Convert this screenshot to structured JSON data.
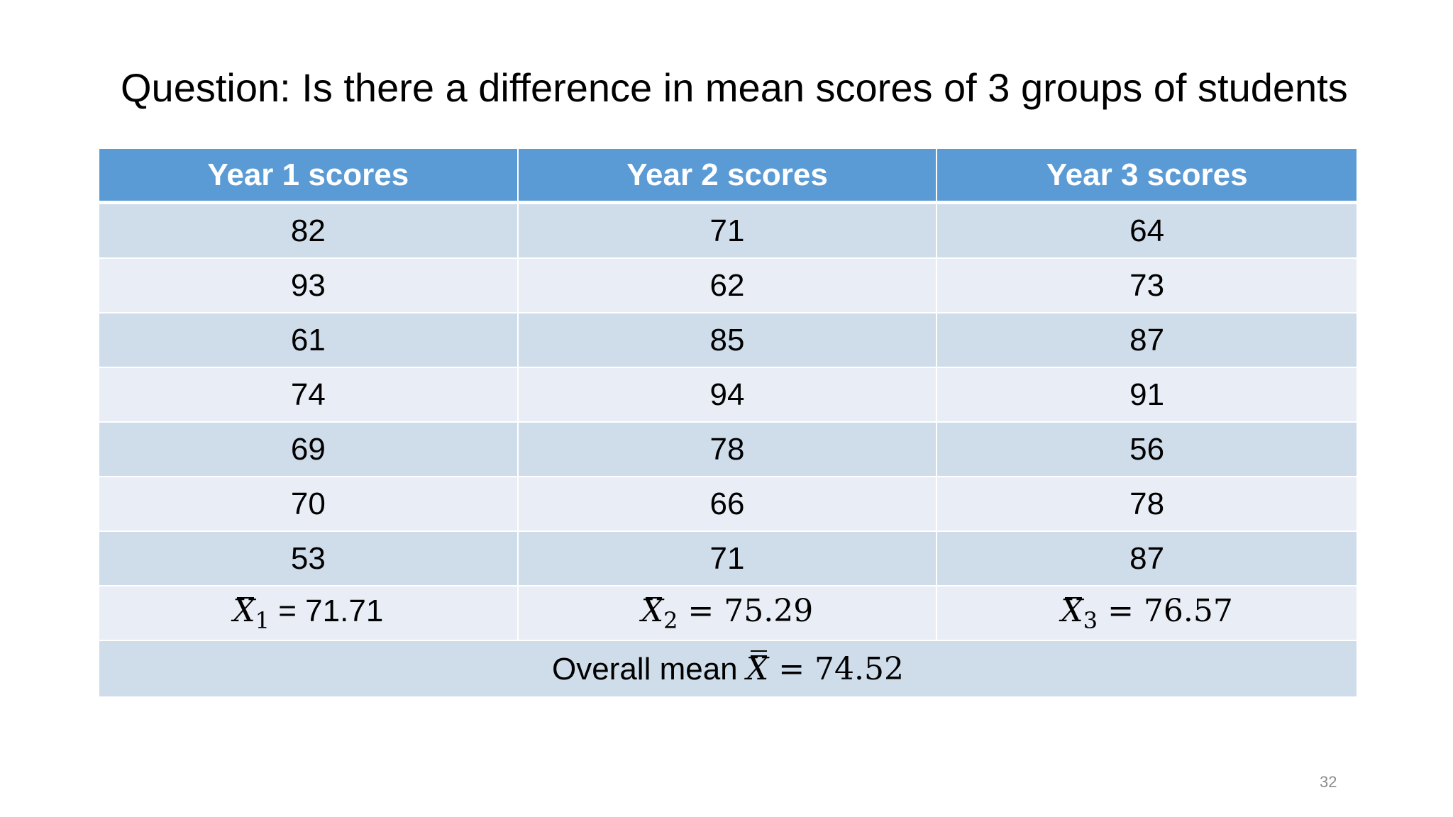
{
  "title": "Question: Is there a difference in mean scores of 3 groups of students",
  "table": {
    "headers": [
      "Year 1 scores",
      "Year 2 scores",
      "Year 3 scores"
    ],
    "rows": [
      [
        "82",
        "71",
        "64"
      ],
      [
        "93",
        "62",
        "73"
      ],
      [
        "61",
        "85",
        "87"
      ],
      [
        "74",
        "94",
        "91"
      ],
      [
        "69",
        "78",
        "56"
      ],
      [
        "70",
        "66",
        "78"
      ],
      [
        "53",
        "71",
        "87"
      ]
    ],
    "means": [
      {
        "symbol": "X",
        "subscript": "1",
        "text": " = 71.71"
      },
      {
        "symbol": "X",
        "subscript": "2",
        "text": " = 75.29"
      },
      {
        "symbol": "X",
        "subscript": "3",
        "text": " = 76.57"
      }
    ],
    "overall": {
      "label": "Overall mean ",
      "symbol": "X",
      "text": " = 74.52"
    }
  },
  "page_number": "32",
  "colors": {
    "header_bg": "#5b9bd5",
    "row_dark": "#cfdcea",
    "row_light": "#e9edf5"
  }
}
